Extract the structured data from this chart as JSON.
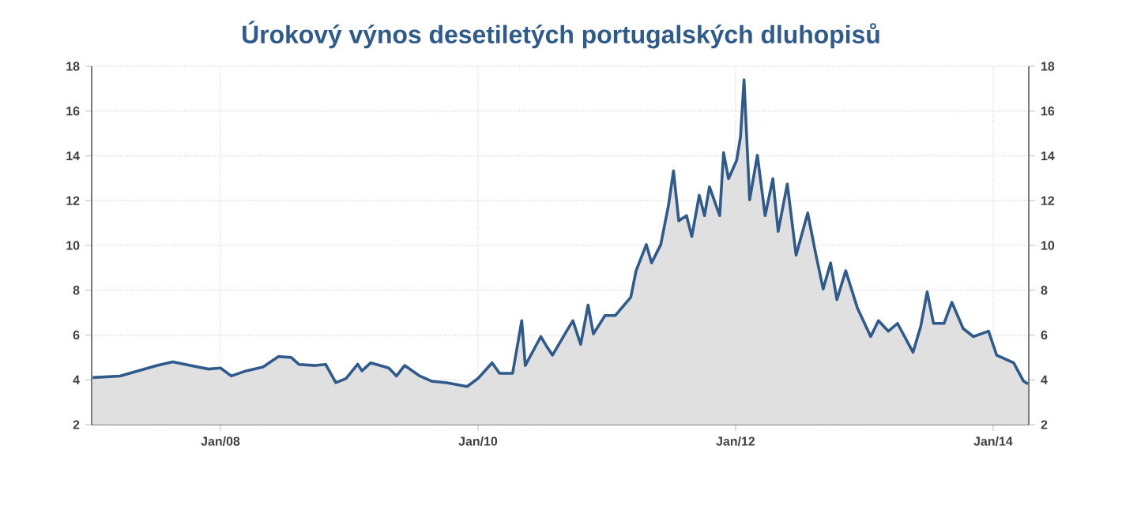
{
  "chart_data": {
    "type": "area",
    "title": "Úrokový výnos desetiletých portugalských dluhopisů",
    "x": [
      "2007-01-04",
      "2007-03-22",
      "2007-07-06",
      "2007-08-19",
      "2007-11-28",
      "2008-01-01",
      "2008-02-01",
      "2008-03-14",
      "2008-05-01",
      "2008-06-14",
      "2008-07-20",
      "2008-08-11",
      "2008-09-27",
      "2008-10-26",
      "2008-11-24",
      "2008-12-23",
      "2009-01-25",
      "2009-02-06",
      "2009-03-03",
      "2009-04-23",
      "2009-05-15",
      "2009-06-07",
      "2009-07-20",
      "2009-08-22",
      "2009-10-05",
      "2009-12-01",
      "2010-01-01",
      "2010-02-10",
      "2010-03-03",
      "2010-04-09",
      "2010-05-05",
      "2010-05-15",
      "2010-06-28",
      "2010-07-16",
      "2010-07-31",
      "2010-09-09",
      "2010-09-27",
      "2010-10-19",
      "2010-11-09",
      "2010-11-24",
      "2010-12-27",
      "2011-01-25",
      "2011-03-10",
      "2011-03-25",
      "2011-04-23",
      "2011-05-08",
      "2011-06-03",
      "2011-06-25",
      "2011-07-09",
      "2011-07-24",
      "2011-08-15",
      "2011-08-30",
      "2011-09-20",
      "2011-10-05",
      "2011-10-19",
      "2011-11-17",
      "2011-11-28",
      "2011-12-12",
      "2012-01-04",
      "2012-01-15",
      "2012-01-25",
      "2012-02-10",
      "2012-03-03",
      "2012-03-25",
      "2012-04-16",
      "2012-05-01",
      "2012-05-27",
      "2012-06-21",
      "2012-07-24",
      "2012-08-15",
      "2012-09-06",
      "2012-09-27",
      "2012-10-15",
      "2012-11-09",
      "2012-12-12",
      "2013-01-19",
      "2013-02-10",
      "2013-03-10",
      "2013-04-05",
      "2013-05-19",
      "2013-06-10",
      "2013-06-28",
      "2013-07-16",
      "2013-08-15",
      "2013-09-06",
      "2013-10-08",
      "2013-11-06",
      "2013-12-19",
      "2014-01-11",
      "2014-02-28",
      "2014-03-28",
      "2014-04-10"
    ],
    "series": [
      {
        "color": "#2e5a8c",
        "values": [
          4.1,
          4.17,
          4.64,
          4.8,
          4.48,
          4.53,
          4.17,
          4.4,
          4.57,
          5.04,
          5.0,
          4.69,
          4.64,
          4.69,
          3.87,
          4.06,
          4.7,
          4.4,
          4.76,
          4.53,
          4.17,
          4.64,
          4.17,
          3.94,
          3.87,
          3.7,
          4.06,
          4.76,
          4.29,
          4.29,
          6.64,
          4.64,
          5.93,
          5.46,
          5.1,
          6.17,
          6.64,
          5.58,
          7.34,
          6.05,
          6.87,
          6.87,
          7.69,
          8.87,
          10.04,
          9.22,
          10.04,
          11.8,
          13.33,
          11.1,
          11.33,
          10.4,
          12.24,
          11.33,
          12.62,
          11.33,
          14.15,
          12.98,
          13.8,
          14.85,
          17.4,
          12.04,
          14.03,
          11.33,
          12.98,
          10.63,
          12.74,
          9.57,
          11.45,
          9.69,
          8.05,
          9.22,
          7.58,
          8.87,
          7.22,
          5.93,
          6.64,
          6.17,
          6.52,
          5.23,
          6.4,
          7.93,
          6.52,
          6.52,
          7.46,
          6.29,
          5.93,
          6.17,
          5.1,
          4.76,
          3.94,
          3.82
        ]
      }
    ],
    "xlim": [
      "2007-01-01",
      "2014-04-12"
    ],
    "xticks": [
      {
        "value": "2008-01-01",
        "label": "Jan/08"
      },
      {
        "value": "2010-01-01",
        "label": "Jan/10"
      },
      {
        "value": "2012-01-01",
        "label": "Jan/12"
      },
      {
        "value": "2014-01-01",
        "label": "Jan/14"
      }
    ],
    "ylim": [
      2,
      18
    ],
    "yticks": [
      2,
      4,
      6,
      8,
      10,
      12,
      14,
      16,
      18
    ],
    "y2lim": [
      2,
      18
    ],
    "y2ticks": [
      2,
      4,
      6,
      8,
      10,
      12,
      14,
      16,
      18
    ],
    "grid": true,
    "line_style": "solid"
  }
}
